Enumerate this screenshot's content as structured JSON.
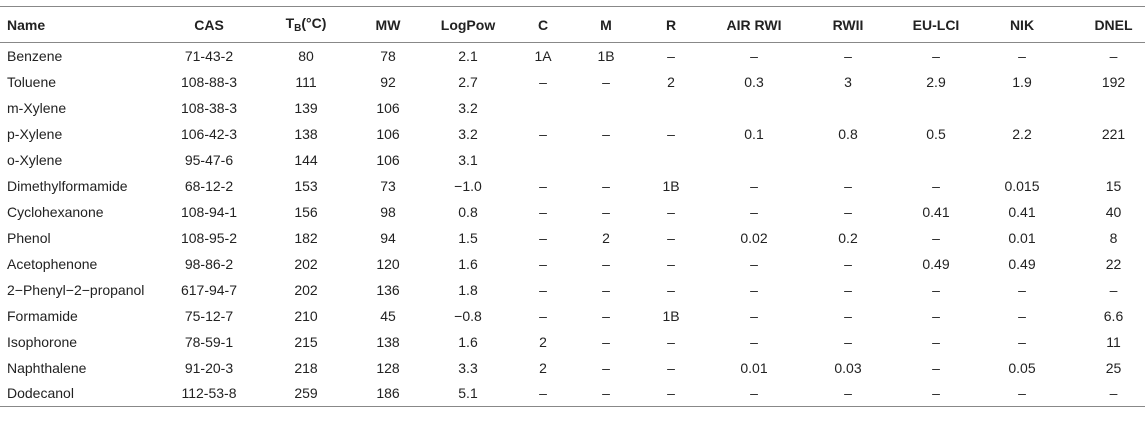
{
  "table": {
    "headers": {
      "name": "Name",
      "cas": "CAS",
      "tb_main": "T",
      "tb_sub": "B",
      "tb_unit": "(°C)",
      "mw": "MW",
      "logpow": "LogPow",
      "c": "C",
      "m": "M",
      "r": "R",
      "air_rwi": "AIR RWI",
      "rwii": "RWII",
      "eu_lci": "EU-LCI",
      "nik": "NIK",
      "dnel": "DNEL"
    },
    "rows": [
      [
        "Benzene",
        "71-43-2",
        "80",
        "78",
        "2.1",
        "1A",
        "1B",
        "–",
        "–",
        "–",
        "–",
        "–",
        "–"
      ],
      [
        "Toluene",
        "108-88-3",
        "111",
        "92",
        "2.7",
        "–",
        "–",
        "2",
        "0.3",
        "3",
        "2.9",
        "1.9",
        "192"
      ],
      [
        "m-Xylene",
        "108-38-3",
        "139",
        "106",
        "3.2",
        "",
        "",
        "",
        "",
        "",
        "",
        "",
        ""
      ],
      [
        "p-Xylene",
        "106-42-3",
        "138",
        "106",
        "3.2",
        "–",
        "–",
        "–",
        "0.1",
        "0.8",
        "0.5",
        "2.2",
        "221"
      ],
      [
        "o-Xylene",
        "95-47-6",
        "144",
        "106",
        "3.1",
        "",
        "",
        "",
        "",
        "",
        "",
        "",
        ""
      ],
      [
        "Dimethylformamide",
        "68-12-2",
        "153",
        "73",
        "−1.0",
        "–",
        "–",
        "1B",
        "–",
        "–",
        "–",
        "0.015",
        "15"
      ],
      [
        "Cyclohexanone",
        "108-94-1",
        "156",
        "98",
        "0.8",
        "–",
        "–",
        "–",
        "–",
        "–",
        "0.41",
        "0.41",
        "40"
      ],
      [
        "Phenol",
        "108-95-2",
        "182",
        "94",
        "1.5",
        "–",
        "2",
        "–",
        "0.02",
        "0.2",
        "–",
        "0.01",
        "8"
      ],
      [
        "Acetophenone",
        "98-86-2",
        "202",
        "120",
        "1.6",
        "–",
        "–",
        "–",
        "–",
        "–",
        "0.49",
        "0.49",
        "22"
      ],
      [
        "2−Phenyl−2−propanol",
        "617-94-7",
        "202",
        "136",
        "1.8",
        "–",
        "–",
        "–",
        "–",
        "–",
        "–",
        "–",
        "–"
      ],
      [
        "Formamide",
        "75-12-7",
        "210",
        "45",
        "−0.8",
        "–",
        "–",
        "1B",
        "–",
        "–",
        "–",
        "–",
        "6.6"
      ],
      [
        "Isophorone",
        "78-59-1",
        "215",
        "138",
        "1.6",
        "2",
        "–",
        "–",
        "–",
        "–",
        "–",
        "–",
        "11"
      ],
      [
        "Naphthalene",
        "91-20-3",
        "218",
        "128",
        "3.3",
        "2",
        "–",
        "–",
        "0.01",
        "0.03",
        "–",
        "0.05",
        "25"
      ],
      [
        "Dodecanol",
        "112-53-8",
        "259",
        "186",
        "5.1",
        "–",
        "–",
        "–",
        "–",
        "–",
        "–",
        "–",
        "–"
      ]
    ]
  }
}
